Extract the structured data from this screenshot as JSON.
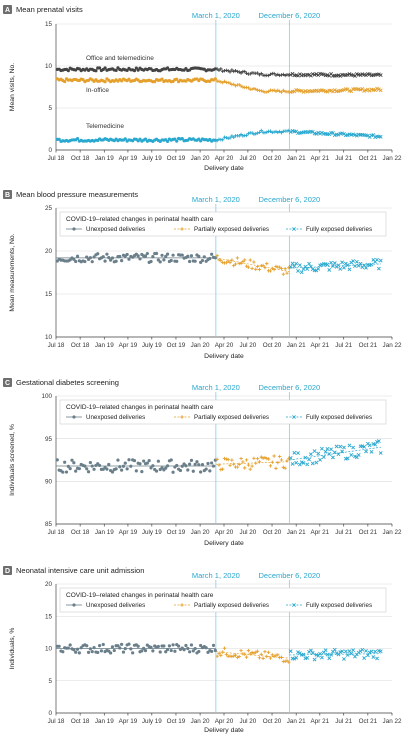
{
  "colors": {
    "unexposed": "#6a7f8a",
    "partial": "#e5a02d",
    "full": "#2aa8cf",
    "office": "#444444",
    "inoffice": "#e5a02d",
    "tele": "#2aa8cf",
    "event": "#7fd0e6"
  },
  "shared": {
    "xlabel": "Delivery date",
    "event1_label": "March 1, 2020",
    "event2_label": "December 6, 2020",
    "x_ticks": [
      "Jul 18",
      "Oct 18",
      "Jan 19",
      "Apr 19",
      "July 19",
      "Oct 19",
      "Jan 20",
      "Apr 20",
      "Jul 20",
      "Oct 20",
      "Jan 21",
      "Apr 21",
      "Jul 21",
      "Oct 21",
      "Jan 22"
    ],
    "legend_title": "COVID-19–related changes in perinatal health care",
    "legend_unexposed": "Unexposed deliveries",
    "legend_partial": "Partially exposed deliveries",
    "legend_full": "Fully exposed deliveries"
  },
  "chart_data": [
    {
      "type": "scatter",
      "badge": "A",
      "title": "Mean prenatal visits",
      "ylabel": "Mean visits, No.",
      "ylim": [
        0,
        15
      ],
      "yticks": [
        0,
        5,
        10,
        15
      ],
      "x_range": [
        "2018-07-01",
        "2022-01-01"
      ],
      "series": [
        {
          "name": "Office and telemedicine",
          "key": "office",
          "start": 9.6,
          "mid": 9.0,
          "end": 8.9
        },
        {
          "name": "In-office",
          "key": "inoffice",
          "start": 8.3,
          "mid": 7.0,
          "end": 7.2
        },
        {
          "name": "Telemedicine",
          "key": "tele",
          "start": 1.2,
          "mid": 2.2,
          "end": 1.6
        }
      ]
    },
    {
      "type": "scatter",
      "badge": "B",
      "title": "Mean blood pressure measurements",
      "ylabel": "Mean measurements, No.",
      "ylim": [
        10,
        25
      ],
      "yticks": [
        10,
        15,
        20,
        25
      ],
      "x_range": [
        "2018-07-01",
        "2022-01-01"
      ],
      "series": [
        {
          "key": "unexposed",
          "mean": 19.2
        },
        {
          "key": "partial",
          "start": 19.2,
          "end": 17.6
        },
        {
          "key": "full",
          "start": 18.0,
          "end": 18.5
        }
      ]
    },
    {
      "type": "scatter",
      "badge": "C",
      "title": "Gestational diabetes screening",
      "ylabel": "Individuals screened, %",
      "ylim": [
        85,
        100
      ],
      "yticks": [
        85,
        90,
        95,
        100
      ],
      "x_range": [
        "2018-07-01",
        "2022-01-01"
      ],
      "series": [
        {
          "key": "unexposed",
          "mean": 91.8
        },
        {
          "key": "partial",
          "start": 92.0,
          "end": 92.3
        },
        {
          "key": "full",
          "start": 92.5,
          "end": 94.0
        }
      ]
    },
    {
      "type": "scatter",
      "badge": "D",
      "title": "Neonatal intensive care unit admission",
      "ylabel": "Individuals, %",
      "ylim": [
        0,
        20
      ],
      "yticks": [
        0,
        5,
        10,
        15,
        20
      ],
      "x_range": [
        "2018-07-01",
        "2022-01-01"
      ],
      "series": [
        {
          "key": "unexposed",
          "mean": 10.0
        },
        {
          "key": "partial",
          "start": 9.5,
          "end": 8.5
        },
        {
          "key": "full",
          "start": 9.0,
          "end": 9.2
        }
      ]
    }
  ]
}
